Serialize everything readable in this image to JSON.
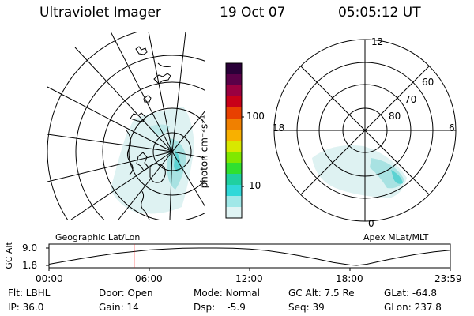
{
  "header": {
    "instrument": "Ultraviolet Imager",
    "date": "19 Oct 07",
    "time": "05:05:12 UT"
  },
  "colorbar": {
    "unit_label": "photon cm⁻²s⁻¹",
    "tick_labels": [
      "100",
      "10"
    ],
    "colors": [
      "#2a0038",
      "#5a0048",
      "#9a0040",
      "#c80018",
      "#e84000",
      "#f08000",
      "#f8b000",
      "#d8e800",
      "#80e800",
      "#30e030",
      "#20d0a0",
      "#30d8d8",
      "#a0e8e8",
      "#e0f4f4"
    ]
  },
  "panels": {
    "left_label": "Geographic Lat/Lon",
    "right_label": "Apex MLat/MLT",
    "polar_mlt_labels": {
      "top": "12",
      "left": "18",
      "right": "6",
      "bottom": "0"
    },
    "polar_lat_labels": [
      "60",
      "70",
      "80"
    ]
  },
  "chart_data": {
    "type": "line",
    "title": "",
    "ylabel": "GC Alt",
    "y_tick_labels": [
      "9.0",
      "1.8"
    ],
    "ylim": [
      1.8,
      9.0
    ],
    "x_tick_labels": [
      "00:00",
      "06:00",
      "12:00",
      "18:00",
      "23:59"
    ],
    "xlim": [
      0,
      24
    ],
    "series": [
      {
        "x": [
          0,
          1,
          2,
          3,
          4,
          5,
          6,
          7,
          8,
          9,
          10,
          11,
          12,
          13,
          14,
          15,
          16,
          17,
          18,
          18.4,
          19,
          20,
          21,
          22,
          23,
          24
        ],
        "y": [
          2.3,
          3.5,
          4.7,
          5.8,
          6.8,
          7.5,
          8.2,
          8.6,
          8.9,
          9.0,
          9.0,
          8.9,
          8.6,
          8.0,
          7.0,
          5.8,
          4.5,
          3.0,
          2.0,
          1.8,
          2.3,
          3.8,
          5.2,
          6.4,
          7.4,
          8.1
        ]
      }
    ],
    "marker_time": 5.09,
    "marker_color": "#ff0000"
  },
  "footer": {
    "filter": "Flt: LBHL",
    "ip": "IP: 36.0",
    "door": "Door: Open",
    "gain": "Gain: 14",
    "mode": "Mode: Normal",
    "dsp": "Dsp:    -5.9",
    "gc_alt": "GC Alt: 7.5 Re",
    "seq": "Seq: 39",
    "glat": "GLat: -64.8",
    "glon": "GLon: 237.8"
  }
}
